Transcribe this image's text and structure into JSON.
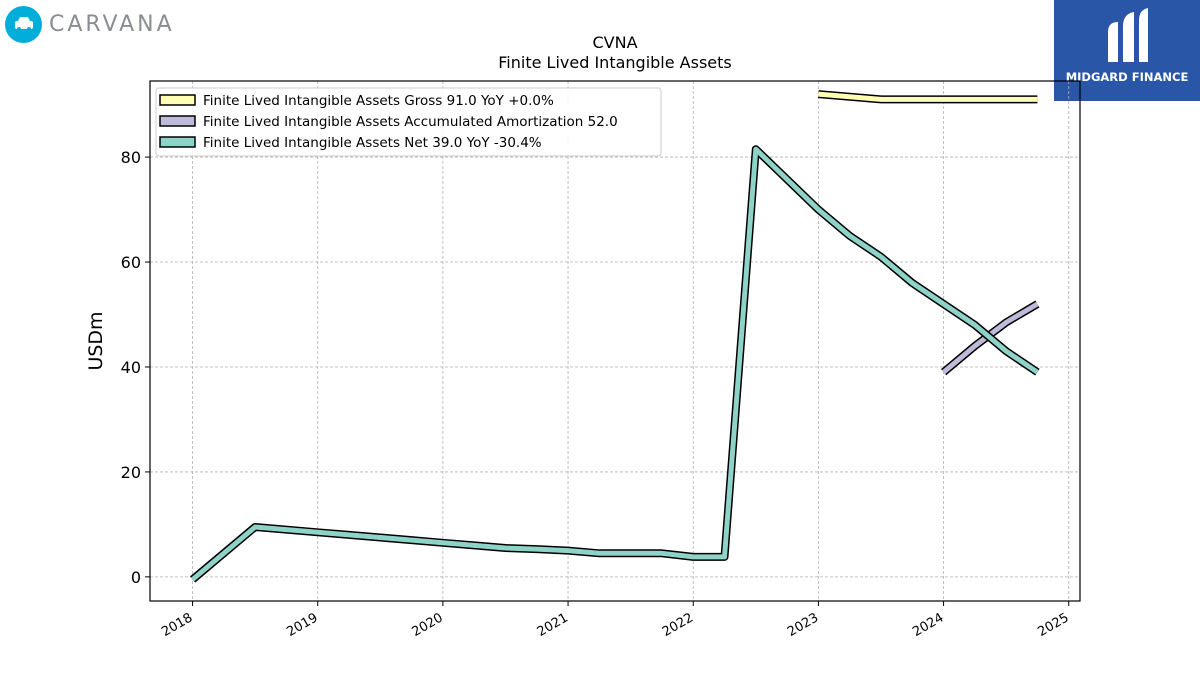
{
  "brand_left": {
    "name": "CARVANA",
    "icon": "car-icon",
    "color": "#00aed9"
  },
  "brand_right": {
    "name": "MIDGARD FINANCE",
    "icon": "midgard-logo-icon",
    "color": "#2a56a8"
  },
  "chart_data": {
    "type": "line",
    "title": "CVNA",
    "subtitle": "Finite Lived Intangible Assets",
    "xlabel": "",
    "ylabel": "USDm",
    "xlim": [
      2017.66,
      2025.09
    ],
    "ylim": [
      -4.6,
      94.5
    ],
    "x_ticks": [
      2018,
      2019,
      2020,
      2021,
      2022,
      2023,
      2024,
      2025
    ],
    "x_tick_labels": [
      "2018",
      "2019",
      "2020",
      "2021",
      "2022",
      "2023",
      "2024",
      "2025"
    ],
    "y_ticks": [
      0,
      20,
      40,
      60,
      80
    ],
    "y_tick_labels": [
      "0",
      "20",
      "40",
      "60",
      "80"
    ],
    "grid": true,
    "legend_position": "top-left",
    "series": [
      {
        "name": "Finite Lived Intangible Assets Gross",
        "legend_label": "Finite Lived Intangible Assets Gross  91.0 YoY +0.0%",
        "color": "#ffffb3",
        "x": [
          2023.0,
          2023.5,
          2024.0,
          2024.75
        ],
        "y": [
          92,
          91,
          91,
          91
        ]
      },
      {
        "name": "Finite Lived Intangible Assets Accumulated Amortization",
        "legend_label": "Finite Lived Intangible Assets Accumulated Amortization  52.0",
        "color": "#bebada",
        "x": [
          2024.0,
          2024.25,
          2024.5,
          2024.75
        ],
        "y": [
          39,
          44,
          48.5,
          52
        ]
      },
      {
        "name": "Finite Lived Intangible Assets Net",
        "legend_label": "Finite Lived Intangible Assets Net  39.0 YoY -30.4%",
        "color": "#8dd3c7",
        "x": [
          2018.0,
          2018.5,
          2019.0,
          2019.25,
          2019.5,
          2019.75,
          2020.0,
          2020.25,
          2020.5,
          2020.75,
          2021.0,
          2021.25,
          2021.5,
          2021.75,
          2022.0,
          2022.25,
          2022.5,
          2023.0,
          2023.25,
          2023.5,
          2023.75,
          2024.0,
          2024.25,
          2024.5,
          2024.75
        ],
        "y": [
          -0.5,
          9.5,
          8.5,
          8.0,
          7.5,
          7.0,
          6.5,
          6.0,
          5.5,
          5.3,
          5.0,
          4.5,
          4.5,
          4.5,
          3.8,
          3.8,
          81.5,
          70,
          65,
          61,
          56,
          52,
          48,
          43,
          39
        ]
      }
    ]
  }
}
